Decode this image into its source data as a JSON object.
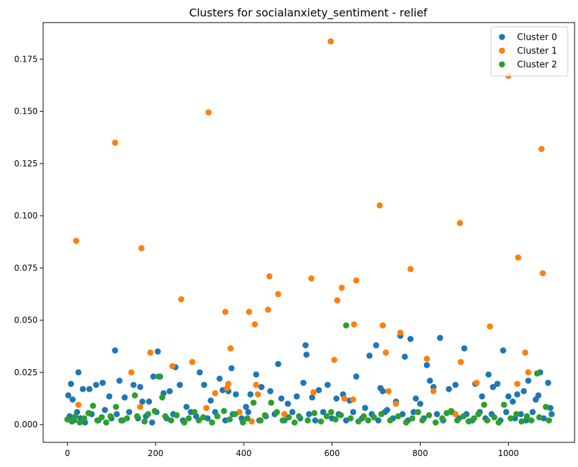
{
  "chart_data": {
    "type": "scatter",
    "title": "Clusters for socialanxiety_sentiment - relief",
    "xlabel": "",
    "ylabel": "",
    "xlim": [
      -55,
      1150
    ],
    "ylim": [
      -0.0085,
      0.1925
    ],
    "xticks": [
      0,
      200,
      400,
      600,
      800,
      1000
    ],
    "yticks": [
      0.0,
      0.025,
      0.05,
      0.075,
      0.1,
      0.125,
      0.15,
      0.175
    ],
    "xtick_labels": [
      "0",
      "200",
      "400",
      "600",
      "800",
      "1000"
    ],
    "ytick_labels": [
      "0.000",
      "0.025",
      "0.050",
      "0.075",
      "0.100",
      "0.125",
      "0.150",
      "0.175"
    ],
    "grid": false,
    "legend_position": "top-right",
    "series": [
      {
        "name": "Cluster 0",
        "color": "#1f77b4",
        "points": [
          [
            2,
            0.014
          ],
          [
            8,
            0.0195
          ],
          [
            12,
            0.012
          ],
          [
            25,
            0.025
          ],
          [
            35,
            0.017
          ],
          [
            50,
            0.017
          ],
          [
            65,
            0.019
          ],
          [
            80,
            0.02
          ],
          [
            95,
            0.0135
          ],
          [
            108,
            0.0355
          ],
          [
            118,
            0.021
          ],
          [
            130,
            0.013
          ],
          [
            150,
            0.019
          ],
          [
            165,
            0.018
          ],
          [
            170,
            0.011
          ],
          [
            185,
            0.011
          ],
          [
            195,
            0.023
          ],
          [
            205,
            0.035
          ],
          [
            210,
            0.023
          ],
          [
            218,
            0.015
          ],
          [
            232,
            0.016
          ],
          [
            245,
            0.0275
          ],
          [
            255,
            0.019
          ],
          [
            270,
            0.0085
          ],
          [
            300,
            0.025
          ],
          [
            310,
            0.019
          ],
          [
            325,
            0.0115
          ],
          [
            345,
            0.022
          ],
          [
            352,
            0.0165
          ],
          [
            365,
            0.016
          ],
          [
            372,
            0.027
          ],
          [
            382,
            0.0145
          ],
          [
            405,
            0.0085
          ],
          [
            415,
            0.0145
          ],
          [
            428,
            0.024
          ],
          [
            440,
            0.018
          ],
          [
            460,
            0.016
          ],
          [
            478,
            0.029
          ],
          [
            485,
            0.0125
          ],
          [
            500,
            0.01
          ],
          [
            520,
            0.0135
          ],
          [
            535,
            0.02
          ],
          [
            540,
            0.038
          ],
          [
            542,
            0.0335
          ],
          [
            555,
            0.013
          ],
          [
            570,
            0.0165
          ],
          [
            590,
            0.019
          ],
          [
            610,
            0.0125
          ],
          [
            625,
            0.0145
          ],
          [
            640,
            0.0115
          ],
          [
            655,
            0.023
          ],
          [
            675,
            0.008
          ],
          [
            685,
            0.033
          ],
          [
            700,
            0.038
          ],
          [
            710,
            0.0175
          ],
          [
            715,
            0.016
          ],
          [
            725,
            0.007
          ],
          [
            745,
            0.011
          ],
          [
            755,
            0.0425
          ],
          [
            765,
            0.0325
          ],
          [
            778,
            0.041
          ],
          [
            790,
            0.0125
          ],
          [
            800,
            0.01
          ],
          [
            815,
            0.0285
          ],
          [
            822,
            0.021
          ],
          [
            830,
            0.018
          ],
          [
            845,
            0.0415
          ],
          [
            865,
            0.017
          ],
          [
            880,
            0.019
          ],
          [
            900,
            0.0365
          ],
          [
            925,
            0.0195
          ],
          [
            940,
            0.0135
          ],
          [
            955,
            0.024
          ],
          [
            965,
            0.018
          ],
          [
            975,
            0.0195
          ],
          [
            988,
            0.0355
          ],
          [
            1000,
            0.0135
          ],
          [
            1010,
            0.011
          ],
          [
            1020,
            0.0145
          ],
          [
            1035,
            0.016
          ],
          [
            1045,
            0.021
          ],
          [
            1062,
            0.012
          ],
          [
            1068,
            0.014
          ],
          [
            1072,
            0.025
          ],
          [
            1090,
            0.02
          ],
          [
            1095,
            0.008
          ],
          [
            5,
            0.004
          ],
          [
            15,
            0.002
          ],
          [
            22,
            0.006
          ],
          [
            30,
            0.003
          ],
          [
            40,
            0.001
          ],
          [
            55,
            0.005
          ],
          [
            70,
            0.002
          ],
          [
            85,
            0.007
          ],
          [
            100,
            0.003
          ],
          [
            112,
            0.005
          ],
          [
            125,
            0.002
          ],
          [
            140,
            0.006
          ],
          [
            160,
            0.003
          ],
          [
            178,
            0.004
          ],
          [
            192,
            0.001
          ],
          [
            202,
            0.006
          ],
          [
            225,
            0.003
          ],
          [
            240,
            0.005
          ],
          [
            262,
            0.002
          ],
          [
            280,
            0.006
          ],
          [
            292,
            0.004
          ],
          [
            318,
            0.003
          ],
          [
            335,
            0.006
          ],
          [
            358,
            0.002
          ],
          [
            375,
            0.005
          ],
          [
            395,
            0.003
          ],
          [
            410,
            0.006
          ],
          [
            435,
            0.002
          ],
          [
            450,
            0.004
          ],
          [
            470,
            0.005
          ],
          [
            492,
            0.002
          ],
          [
            510,
            0.006
          ],
          [
            528,
            0.003
          ],
          [
            548,
            0.005
          ],
          [
            562,
            0.002
          ],
          [
            580,
            0.006
          ],
          [
            600,
            0.003
          ],
          [
            615,
            0.005
          ],
          [
            632,
            0.002
          ],
          [
            648,
            0.006
          ],
          [
            668,
            0.003
          ],
          [
            690,
            0.005
          ],
          [
            705,
            0.002
          ],
          [
            720,
            0.006
          ],
          [
            738,
            0.003
          ],
          [
            760,
            0.005
          ],
          [
            772,
            0.002
          ],
          [
            785,
            0.006
          ],
          [
            808,
            0.003
          ],
          [
            838,
            0.005
          ],
          [
            852,
            0.002
          ],
          [
            872,
            0.006
          ],
          [
            888,
            0.003
          ],
          [
            905,
            0.005
          ],
          [
            918,
            0.002
          ],
          [
            935,
            0.006
          ],
          [
            948,
            0.003
          ],
          [
            962,
            0.005
          ],
          [
            982,
            0.002
          ],
          [
            995,
            0.006
          ],
          [
            1015,
            0.003
          ],
          [
            1028,
            0.005
          ],
          [
            1040,
            0.002
          ],
          [
            1055,
            0.006
          ],
          [
            1080,
            0.003
          ],
          [
            1098,
            0.005
          ]
        ]
      },
      {
        "name": "Cluster 1",
        "color": "#ff7f0e",
        "points": [
          [
            20,
            0.088
          ],
          [
            108,
            0.135
          ],
          [
            145,
            0.025
          ],
          [
            165,
            0.0085
          ],
          [
            168,
            0.0845
          ],
          [
            188,
            0.0345
          ],
          [
            238,
            0.028
          ],
          [
            258,
            0.06
          ],
          [
            283,
            0.03
          ],
          [
            315,
            0.008
          ],
          [
            320,
            0.1495
          ],
          [
            335,
            0.015
          ],
          [
            358,
            0.054
          ],
          [
            362,
            0.0175
          ],
          [
            365,
            0.0195
          ],
          [
            370,
            0.0365
          ],
          [
            390,
            0.006
          ],
          [
            412,
            0.054
          ],
          [
            418,
            0.0015
          ],
          [
            425,
            0.048
          ],
          [
            428,
            0.019
          ],
          [
            432,
            0.0145
          ],
          [
            455,
            0.055
          ],
          [
            458,
            0.071
          ],
          [
            478,
            0.0625
          ],
          [
            492,
            0.005
          ],
          [
            553,
            0.07
          ],
          [
            558,
            0.0155
          ],
          [
            597,
            0.1835
          ],
          [
            605,
            0.031
          ],
          [
            612,
            0.0595
          ],
          [
            622,
            0.0655
          ],
          [
            628,
            0.0125
          ],
          [
            648,
            0.012
          ],
          [
            650,
            0.048
          ],
          [
            655,
            0.069
          ],
          [
            708,
            0.105
          ],
          [
            715,
            0.0475
          ],
          [
            722,
            0.0345
          ],
          [
            728,
            0.016
          ],
          [
            745,
            0.01
          ],
          [
            755,
            0.044
          ],
          [
            778,
            0.0745
          ],
          [
            815,
            0.0315
          ],
          [
            830,
            0.016
          ],
          [
            890,
            0.0965
          ],
          [
            892,
            0.03
          ],
          [
            928,
            0.02
          ],
          [
            958,
            0.047
          ],
          [
            1000,
            0.167
          ],
          [
            1020,
            0.0195
          ],
          [
            1022,
            0.08
          ],
          [
            1038,
            0.0345
          ],
          [
            1045,
            0.025
          ],
          [
            1075,
            0.132
          ],
          [
            1078,
            0.0725
          ],
          [
            25,
            0.0095
          ],
          [
            880,
            0.005
          ]
        ]
      },
      {
        "name": "Cluster 2",
        "color": "#2ca02c",
        "points": [
          [
            0,
            0.0025
          ],
          [
            10,
            0.0015
          ],
          [
            18,
            0.004
          ],
          [
            28,
            0.001
          ],
          [
            38,
            0.003
          ],
          [
            48,
            0.0055
          ],
          [
            58,
            0.009
          ],
          [
            68,
            0.002
          ],
          [
            78,
            0.0035
          ],
          [
            88,
            0.001
          ],
          [
            98,
            0.004
          ],
          [
            110,
            0.0085
          ],
          [
            122,
            0.002
          ],
          [
            135,
            0.003
          ],
          [
            153,
            0.014
          ],
          [
            158,
            0.004
          ],
          [
            175,
            0.0015
          ],
          [
            183,
            0.005
          ],
          [
            198,
            0.0065
          ],
          [
            207,
            0.023
          ],
          [
            215,
            0.013
          ],
          [
            222,
            0.004
          ],
          [
            235,
            0.002
          ],
          [
            248,
            0.0045
          ],
          [
            265,
            0.001
          ],
          [
            275,
            0.003
          ],
          [
            288,
            0.006
          ],
          [
            298,
            0.002
          ],
          [
            308,
            0.0035
          ],
          [
            328,
            0.001
          ],
          [
            340,
            0.004
          ],
          [
            355,
            0.0065
          ],
          [
            368,
            0.0025
          ],
          [
            380,
            0.005
          ],
          [
            398,
            0.001
          ],
          [
            408,
            0.003
          ],
          [
            422,
            0.0105
          ],
          [
            438,
            0.002
          ],
          [
            448,
            0.0045
          ],
          [
            462,
            0.0105
          ],
          [
            475,
            0.006
          ],
          [
            488,
            0.002
          ],
          [
            502,
            0.0035
          ],
          [
            515,
            0.001
          ],
          [
            525,
            0.004
          ],
          [
            545,
            0.002
          ],
          [
            560,
            0.0055
          ],
          [
            575,
            0.0015
          ],
          [
            588,
            0.004
          ],
          [
            598,
            0.006
          ],
          [
            608,
            0.0025
          ],
          [
            620,
            0.0045
          ],
          [
            632,
            0.0475
          ],
          [
            642,
            0.003
          ],
          [
            660,
            0.0015
          ],
          [
            672,
            0.004
          ],
          [
            682,
            0.002
          ],
          [
            695,
            0.0035
          ],
          [
            712,
            0.005
          ],
          [
            732,
            0.002
          ],
          [
            750,
            0.004
          ],
          [
            768,
            0.001
          ],
          [
            782,
            0.003
          ],
          [
            795,
            0.006
          ],
          [
            805,
            0.002
          ],
          [
            820,
            0.0045
          ],
          [
            835,
            0.001
          ],
          [
            850,
            0.003
          ],
          [
            860,
            0.0055
          ],
          [
            870,
            0.0065
          ],
          [
            884,
            0.002
          ],
          [
            898,
            0.004
          ],
          [
            910,
            0.0015
          ],
          [
            922,
            0.003
          ],
          [
            932,
            0.005
          ],
          [
            945,
            0.0095
          ],
          [
            952,
            0.002
          ],
          [
            968,
            0.0035
          ],
          [
            978,
            0.001
          ],
          [
            990,
            0.0095
          ],
          [
            1005,
            0.003
          ],
          [
            1018,
            0.005
          ],
          [
            1030,
            0.0015
          ],
          [
            1042,
            0.004
          ],
          [
            1052,
            0.002
          ],
          [
            1065,
            0.0245
          ],
          [
            1070,
            0.0035
          ],
          [
            1085,
            0.0085
          ],
          [
            1092,
            0.002
          ]
        ]
      }
    ]
  }
}
